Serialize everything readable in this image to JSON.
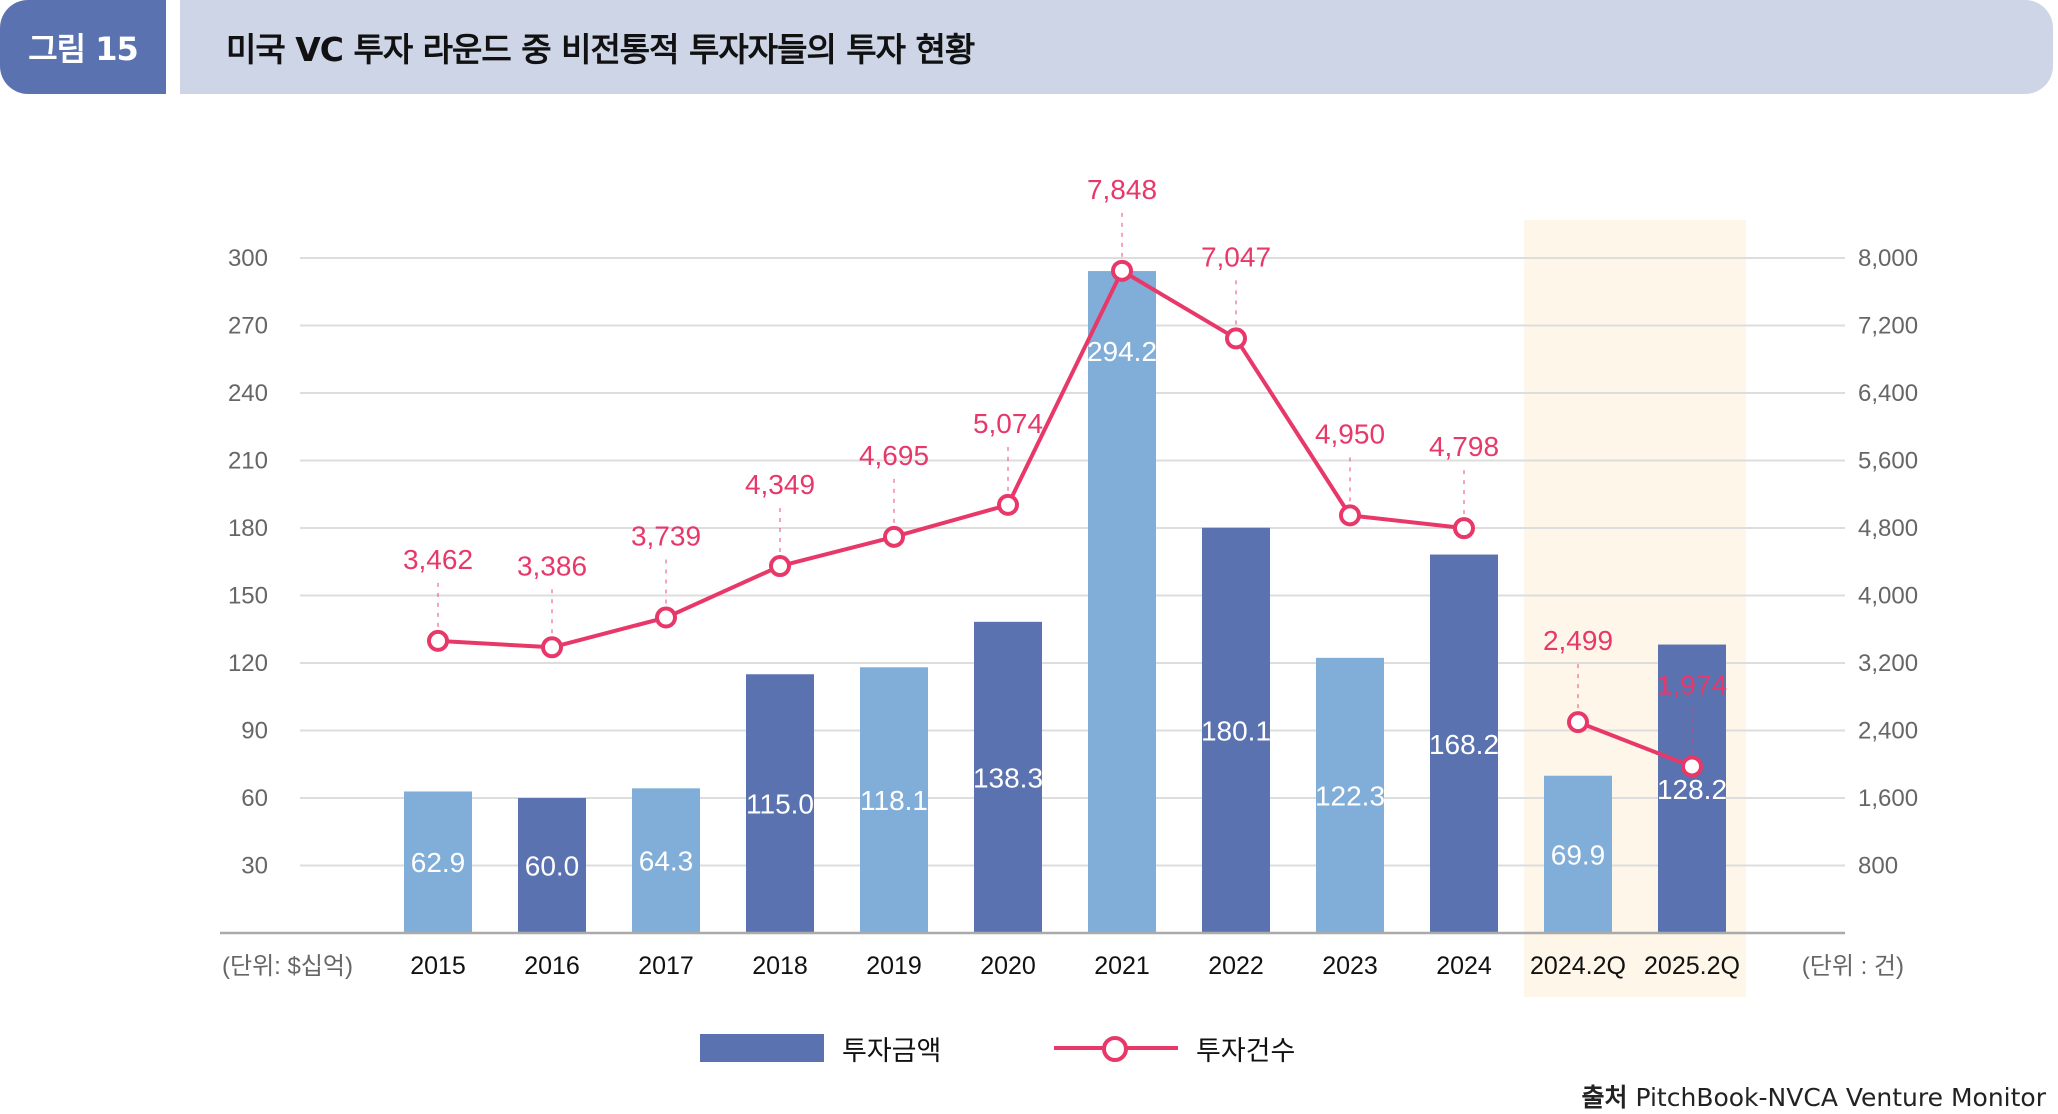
{
  "figure": {
    "badge": "그림 15",
    "title": "미국 VC 투자 라운드 중 비전통적 투자자들의 투자 현황",
    "source_label": "출처",
    "source_text": "PitchBook-NVCA Venture Monitor"
  },
  "colors": {
    "bar_dark": "#5a73b0",
    "bar_light": "#80aed8",
    "line": "#e8386a",
    "highlight": "#fdf6e9",
    "grid": "#dddddd"
  },
  "chart_data": {
    "type": "bar+line",
    "title": "미국 VC 투자 라운드 중 비전통적 투자자들의 투자 현황",
    "categories": [
      "2015",
      "2016",
      "2017",
      "2018",
      "2019",
      "2020",
      "2021",
      "2022",
      "2023",
      "2024",
      "2024.2Q",
      "2025.2Q"
    ],
    "highlighted_categories": [
      "2024.2Q",
      "2025.2Q"
    ],
    "series": [
      {
        "name": "투자금액",
        "type": "bar",
        "axis": "left",
        "values": [
          62.9,
          60.0,
          64.3,
          115.0,
          118.1,
          138.3,
          294.2,
          180.1,
          122.3,
          168.2,
          69.9,
          128.2
        ],
        "labels": [
          "62.9",
          "60.0",
          "64.3",
          "115.0",
          "118.1",
          "138.3",
          "294.2",
          "180.1",
          "122.3",
          "168.2",
          "69.9",
          "128.2"
        ],
        "shades": [
          "light",
          "dark",
          "light",
          "dark",
          "light",
          "dark",
          "light",
          "dark",
          "light",
          "dark",
          "light",
          "dark"
        ]
      },
      {
        "name": "투자건수",
        "type": "line",
        "axis": "right",
        "values": [
          3462,
          3386,
          3739,
          4349,
          4695,
          5074,
          7848,
          7047,
          4950,
          4798,
          2499,
          1974
        ],
        "labels": [
          "3,462",
          "3,386",
          "3,739",
          "4,349",
          "4,695",
          "5,074",
          "7,848",
          "7,047",
          "4,950",
          "4,798",
          "2,499",
          "1,974"
        ],
        "segments": [
          [
            0,
            9
          ],
          [
            10,
            11
          ]
        ]
      }
    ],
    "left_axis": {
      "unit_label": "(단위: $십억)",
      "ylim": [
        0,
        300
      ],
      "ticks": [
        30,
        60,
        90,
        120,
        150,
        180,
        210,
        240,
        270,
        300
      ],
      "tick_labels": [
        "30",
        "60",
        "90",
        "120",
        "150",
        "180",
        "210",
        "240",
        "270",
        "300"
      ]
    },
    "right_axis": {
      "unit_label": "(단위 : 건)",
      "ylim": [
        0,
        8000
      ],
      "ticks": [
        800,
        1600,
        2400,
        3200,
        4000,
        4800,
        5600,
        6400,
        7200,
        8000
      ],
      "tick_labels": [
        "800",
        "1,600",
        "2,400",
        "3,200",
        "4,000",
        "4,800",
        "5,600",
        "6,400",
        "7,200",
        "8,000"
      ]
    },
    "grid": true,
    "legend": {
      "placement": "bottom-center",
      "entries": [
        {
          "label": "투자금액",
          "type": "bar"
        },
        {
          "label": "투자건수",
          "type": "line-marker"
        }
      ]
    }
  }
}
